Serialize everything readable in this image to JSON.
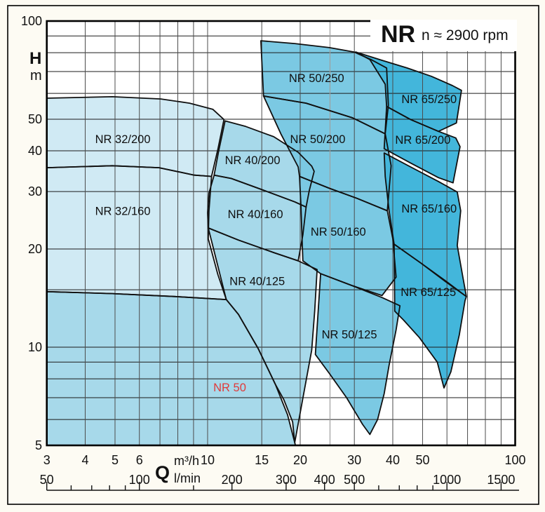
{
  "title": {
    "series": "NR",
    "speed": "n ≈ 2900 rpm"
  },
  "axes": {
    "y": {
      "label": "H",
      "unit": "m",
      "min": 5,
      "max": 100,
      "scale": "log",
      "tick_labels": [
        100,
        50,
        40,
        30,
        20,
        10,
        5
      ]
    },
    "x": {
      "label": "Q",
      "unit_top": "m³/h",
      "unit_bottom": "l/min",
      "min_m3h": 3,
      "max_m3h": 100,
      "scale": "log",
      "tick_labels_m3h": [
        3,
        4,
        5,
        6,
        10,
        15,
        20,
        30,
        40,
        50,
        100
      ],
      "tick_labels_lmin": [
        50,
        100,
        200,
        300,
        400,
        500,
        1000,
        1500
      ],
      "ruler_ticks_lmin": [
        50,
        60,
        70,
        80,
        90,
        100,
        150,
        200,
        300,
        400,
        500,
        600,
        700,
        800,
        900,
        1000,
        1500
      ]
    }
  },
  "grid": {
    "h_values": [
      6,
      7,
      8,
      9,
      10,
      15,
      20,
      30,
      40,
      50,
      60,
      70,
      80,
      90
    ],
    "v_values": [
      4,
      5,
      6,
      7,
      8,
      9,
      10,
      15,
      20,
      30,
      40,
      50,
      60,
      70,
      80,
      90
    ],
    "v_gray_values": [
      25
    ]
  },
  "colors": {
    "group_nr32": "#d0eaf4",
    "group_nr40": "#a7d9ea",
    "group_nr50": "#7bc9e3",
    "group_nr65": "#43b6db",
    "outline": "#101010",
    "grid_h": "#1b1b1b",
    "grid_v": "#4c4c4c",
    "grid_gray": "#9e9e9e",
    "red_label": "#e03a3a",
    "frame": "#000000",
    "plot_bg": "#ffffff",
    "page_bg": "#fdfbf3"
  },
  "chart_data": {
    "type": "area",
    "title": "NR n ≈ 2900 rpm",
    "xlabel": "Q (m³/h top scale, l/min bottom scale)",
    "ylabel": "H (m)",
    "xlim_m3h": [
      3,
      100
    ],
    "ylim_m": [
      5,
      100
    ],
    "log_log": true,
    "grid": true,
    "regions": [
      {
        "name": "NR 50",
        "group": "group_nr40",
        "label_color": "red_label",
        "label_pos": [
          11.8,
          7.5
        ],
        "points": [
          [
            3,
            14.8
          ],
          [
            4.9,
            14.6
          ],
          [
            7.85,
            14.3
          ],
          [
            11.5,
            14.0
          ],
          [
            12.6,
            12.6
          ],
          [
            14.6,
            9.9
          ],
          [
            16.6,
            7.7
          ],
          [
            18.2,
            6.2
          ],
          [
            19.2,
            5.1
          ],
          [
            19.3,
            5.0
          ],
          [
            3,
            5.0
          ]
        ]
      },
      {
        "name": "NR 32/160",
        "group": "group_nr32",
        "label_color": "outline",
        "label_pos": [
          5.3,
          26.1
        ],
        "points": [
          [
            3,
            35.5
          ],
          [
            4.9,
            36.0
          ],
          [
            6.95,
            35.5
          ],
          [
            9.05,
            33.7
          ],
          [
            10.3,
            33.4
          ],
          [
            10.1,
            26.2
          ],
          [
            10.05,
            21.5
          ],
          [
            10.8,
            16.7
          ],
          [
            11.5,
            14.0
          ],
          [
            7.85,
            14.3
          ],
          [
            4.9,
            14.6
          ],
          [
            3,
            14.8
          ]
        ]
      },
      {
        "name": "NR 32/200",
        "group": "group_nr32",
        "label_color": "outline",
        "label_pos": [
          5.3,
          43.3
        ],
        "points": [
          [
            3,
            58.0
          ],
          [
            4.9,
            58.6
          ],
          [
            7.05,
            57.7
          ],
          [
            8.74,
            56.0
          ],
          [
            10.4,
            53.6
          ],
          [
            11.3,
            49.9
          ],
          [
            10.8,
            40.4
          ],
          [
            10.3,
            33.4
          ],
          [
            9.05,
            33.7
          ],
          [
            6.95,
            35.5
          ],
          [
            4.9,
            36.0
          ],
          [
            3,
            35.5
          ]
        ]
      },
      {
        "name": "NR 40/125",
        "group": "group_nr40",
        "label_color": "outline",
        "label_pos": [
          14.5,
          15.9
        ],
        "points": [
          [
            10.05,
            23.2
          ],
          [
            12.6,
            21.3
          ],
          [
            16.4,
            19.5
          ],
          [
            19.7,
            18.4
          ],
          [
            22.7,
            17.3
          ],
          [
            22.3,
            12.95
          ],
          [
            21.8,
            9.8
          ],
          [
            19.2,
            5.1
          ],
          [
            18.9,
            5.9
          ],
          [
            17.7,
            6.9
          ],
          [
            16.6,
            7.7
          ],
          [
            14.6,
            9.9
          ],
          [
            12.6,
            12.6
          ],
          [
            11.5,
            14.0
          ]
        ]
      },
      {
        "name": "NR 40/160",
        "group": "group_nr40",
        "label_color": "outline",
        "label_pos": [
          14.3,
          25.5
        ],
        "points": [
          [
            10.5,
            33.7
          ],
          [
            11.95,
            32.9
          ],
          [
            14.75,
            30.6
          ],
          [
            19.2,
            27.9
          ],
          [
            20.9,
            26.9
          ],
          [
            20.4,
            22.1
          ],
          [
            19.7,
            18.4
          ],
          [
            16.4,
            19.5
          ],
          [
            12.6,
            21.3
          ],
          [
            10.05,
            23.2
          ],
          [
            10.0,
            25.8
          ],
          [
            10.1,
            29.7
          ]
        ]
      },
      {
        "name": "NR 40/200",
        "group": "group_nr40",
        "label_color": "outline",
        "label_pos": [
          14.0,
          37.3
        ],
        "points": [
          [
            11.4,
            49.4
          ],
          [
            13.3,
            47.5
          ],
          [
            16.4,
            44.2
          ],
          [
            19.7,
            39.6
          ],
          [
            21.8,
            35.9
          ],
          [
            22.2,
            34.6
          ],
          [
            21.4,
            30.2
          ],
          [
            20.9,
            26.9
          ],
          [
            19.2,
            27.9
          ],
          [
            14.75,
            30.6
          ],
          [
            11.95,
            32.9
          ],
          [
            10.5,
            33.7
          ],
          [
            10.85,
            39.7
          ]
        ]
      },
      {
        "name": "NR 50/125",
        "group": "group_nr50",
        "label_color": "outline",
        "label_pos": [
          28.9,
          10.9
        ],
        "points": [
          [
            23.3,
            16.8
          ],
          [
            29.2,
            15.5
          ],
          [
            36.9,
            14.2
          ],
          [
            42.2,
            13.4
          ],
          [
            41.0,
            11.3
          ],
          [
            38.9,
            8.8
          ],
          [
            37.5,
            7.2
          ],
          [
            35.7,
            6.0
          ],
          [
            33.7,
            5.4
          ],
          [
            31.9,
            5.8
          ],
          [
            28.3,
            7.0
          ],
          [
            24.9,
            8.3
          ],
          [
            22.4,
            9.5
          ]
        ]
      },
      {
        "name": "NR 50/160",
        "group": "group_nr50",
        "label_color": "outline",
        "label_pos": [
          26.6,
          22.5
        ],
        "points": [
          [
            19.9,
            33.4
          ],
          [
            24.9,
            30.7
          ],
          [
            30.6,
            28.6
          ],
          [
            38.4,
            26.2
          ],
          [
            40.0,
            21.5
          ],
          [
            41.0,
            16.4
          ],
          [
            36.9,
            14.4
          ],
          [
            29.2,
            15.5
          ],
          [
            23.3,
            16.8
          ],
          [
            20.4,
            18.4
          ],
          [
            20.1,
            27.6
          ]
        ]
      },
      {
        "name": "NR 50/200",
        "group": "group_nr50",
        "label_color": "outline",
        "label_pos": [
          22.8,
          43.3
        ],
        "points": [
          [
            15.2,
            58.9
          ],
          [
            20.9,
            56.0
          ],
          [
            29.6,
            50.5
          ],
          [
            37.8,
            45.1
          ],
          [
            39.5,
            36.0
          ],
          [
            38.4,
            26.2
          ],
          [
            30.6,
            28.6
          ],
          [
            24.9,
            30.7
          ],
          [
            19.9,
            33.4
          ],
          [
            19.7,
            35.7
          ],
          [
            17.3,
            45.1
          ]
        ]
      },
      {
        "name": "NR 50/250",
        "group": "group_nr50",
        "label_color": "outline",
        "label_pos": [
          22.6,
          66.6
        ],
        "points": [
          [
            14.9,
            87.0
          ],
          [
            19.2,
            85.3
          ],
          [
            24.9,
            82.9
          ],
          [
            29.9,
            80.4
          ],
          [
            34.0,
            76.2
          ],
          [
            38.2,
            71.8
          ],
          [
            38.7,
            55.2
          ],
          [
            37.8,
            45.1
          ],
          [
            29.6,
            50.5
          ],
          [
            20.9,
            56.0
          ],
          [
            15.2,
            58.9
          ]
        ]
      },
      {
        "name": "NR 65/125",
        "group": "group_nr65",
        "label_color": "outline",
        "label_pos": [
          52.2,
          14.7
        ],
        "points": [
          [
            40.4,
            20.7
          ],
          [
            49.4,
            18.1
          ],
          [
            59.3,
            15.9
          ],
          [
            69.4,
            14.3
          ],
          [
            68.7,
            13.9
          ],
          [
            65.8,
            10.9
          ],
          [
            61.8,
            8.4
          ],
          [
            58.7,
            7.5
          ],
          [
            55.8,
            9.0
          ],
          [
            48.8,
            10.7
          ],
          [
            43.4,
            12.1
          ],
          [
            40.6,
            12.9
          ]
        ]
      },
      {
        "name": "NR 65/160",
        "group": "group_nr65",
        "label_color": "outline",
        "label_pos": [
          52.5,
          26.5
        ],
        "points": [
          [
            37.5,
            39.4
          ],
          [
            45.7,
            35.7
          ],
          [
            56.3,
            32.2
          ],
          [
            64.8,
            29.9
          ],
          [
            66.5,
            26.2
          ],
          [
            64.8,
            20.5
          ],
          [
            67.6,
            16.4
          ],
          [
            69.4,
            14.3
          ],
          [
            58.7,
            16.1
          ],
          [
            49.4,
            18.1
          ],
          [
            40.4,
            20.7
          ],
          [
            38.9,
            26.2
          ],
          [
            37.8,
            33.4
          ]
        ]
      },
      {
        "name": "NR 65/200",
        "group": "group_nr65",
        "label_color": "outline",
        "label_pos": [
          50.1,
          43.1
        ],
        "points": [
          [
            38.2,
            54.7
          ],
          [
            45.7,
            49.9
          ],
          [
            56.3,
            45.9
          ],
          [
            64.1,
            43.8
          ],
          [
            66.2,
            41.2
          ],
          [
            62.8,
            31.9
          ],
          [
            56.3,
            33.1
          ],
          [
            45.7,
            36.7
          ],
          [
            37.5,
            40.6
          ]
        ]
      },
      {
        "name": "NR 65/250",
        "group": "group_nr65",
        "label_color": "outline",
        "label_pos": [
          52.5,
          57.4
        ],
        "points": [
          [
            30.3,
            80.4
          ],
          [
            36.9,
            75.8
          ],
          [
            44.5,
            71.8
          ],
          [
            53.4,
            67.7
          ],
          [
            62.5,
            63.4
          ],
          [
            66.9,
            61.3
          ],
          [
            64.4,
            48.7
          ],
          [
            56.3,
            45.9
          ],
          [
            45.7,
            49.9
          ],
          [
            38.2,
            54.7
          ],
          [
            37.8,
            64.0
          ],
          [
            33.7,
            76.2
          ]
        ]
      }
    ]
  }
}
